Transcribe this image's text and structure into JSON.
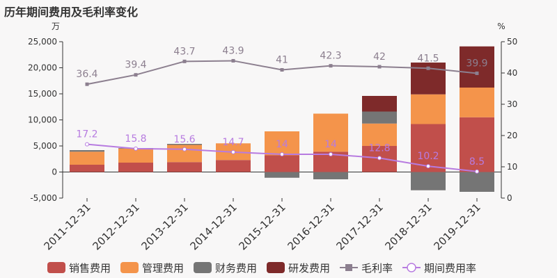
{
  "title": "历年期间费用及毛利率变化",
  "chart_data": {
    "type": "bar",
    "stacked": true,
    "categories": [
      "2011-12-31",
      "2012-12-31",
      "2013-12-31",
      "2014-12-31",
      "2015-12-31",
      "2016-12-31",
      "2017-12-31",
      "2018-12-31",
      "2019-12-31"
    ],
    "left_axis": {
      "unit": "万",
      "min": -5000,
      "max": 25000,
      "ticks": [
        "-5,000",
        "0",
        "5,000",
        "10,000",
        "15,000",
        "20,000",
        "25,000"
      ],
      "tick_values": [
        -5000,
        0,
        5000,
        10000,
        15000,
        20000,
        25000
      ]
    },
    "right_axis": {
      "unit": "%",
      "min": 0,
      "max": 50,
      "ticks": [
        "0",
        "10",
        "20",
        "30",
        "40",
        "50"
      ],
      "tick_values": [
        0,
        10,
        20,
        30,
        40,
        50
      ]
    },
    "series": [
      {
        "name": "销售费用",
        "kind": "bar",
        "color": "#c14f4b",
        "values": [
          1400,
          1800,
          1900,
          2300,
          3200,
          3900,
          5000,
          9200,
          10500
        ]
      },
      {
        "name": "管理费用",
        "kind": "bar",
        "color": "#f4944b",
        "values": [
          2500,
          2700,
          3300,
          3200,
          4600,
          7300,
          4300,
          5700,
          5700
        ]
      },
      {
        "name": "财务费用",
        "kind": "bar",
        "color": "#757575",
        "values": [
          300,
          100,
          200,
          0,
          -1100,
          -1400,
          2300,
          -3500,
          -3800
        ]
      },
      {
        "name": "研发费用",
        "kind": "bar",
        "color": "#7e2a2a",
        "values": [
          0,
          0,
          0,
          0,
          0,
          0,
          3000,
          6100,
          7900
        ]
      },
      {
        "name": "毛利率",
        "kind": "line",
        "axis": "right",
        "color": "#8c7f8f",
        "values": [
          36.4,
          39.4,
          43.7,
          43.9,
          41,
          42.3,
          42,
          41.5,
          39.9
        ],
        "labels": [
          "36.4",
          "39.4",
          "43.7",
          "43.9",
          "41",
          "42.3",
          "42",
          "41.5",
          "39.9"
        ]
      },
      {
        "name": "期间费用率",
        "kind": "line",
        "axis": "right",
        "color": "#b77be0",
        "values": [
          17.2,
          15.8,
          15.6,
          14.7,
          14,
          14,
          12.8,
          10.2,
          8.5
        ],
        "labels": [
          "17.2",
          "15.8",
          "15.6",
          "14.7",
          "14",
          "14",
          "12.8",
          "10.2",
          "8.5"
        ]
      }
    ],
    "legend": "bottom",
    "grid": false
  }
}
